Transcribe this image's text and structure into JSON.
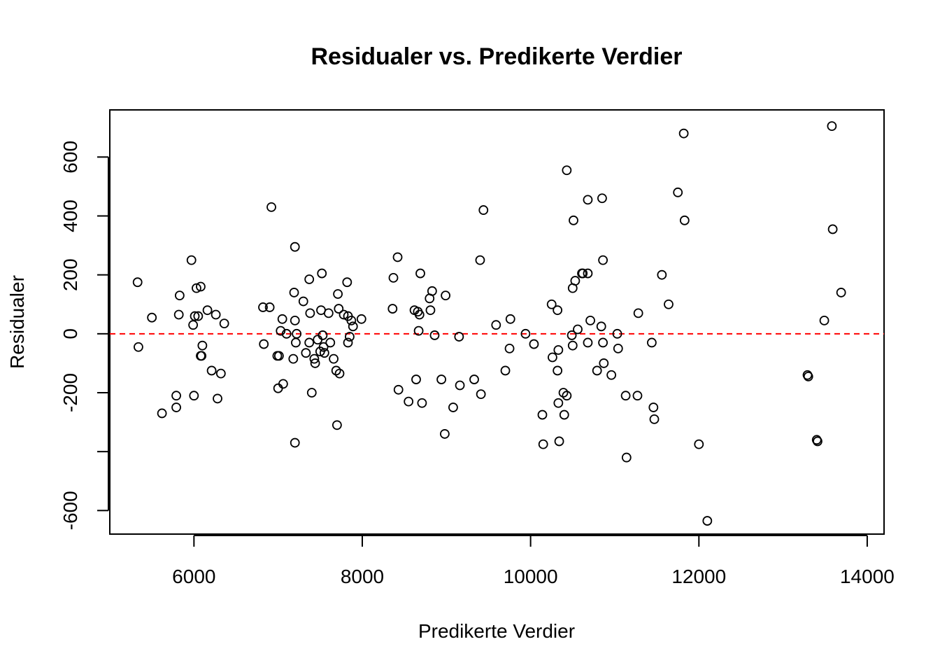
{
  "chart_data": {
    "type": "scatter",
    "title": "Residualer vs. Predikerte Verdier",
    "xlabel": "Predikerte Verdier",
    "ylabel": "Residualer",
    "xlim": [
      5000,
      14200
    ],
    "ylim": [
      -680,
      760
    ],
    "xticks": [
      6000,
      8000,
      10000,
      12000,
      14000
    ],
    "yticks": [
      -600,
      -400,
      -200,
      0,
      200,
      400,
      600
    ],
    "ytick_labels": [
      "-600",
      "",
      "-200",
      "0",
      "200",
      "400",
      "600"
    ],
    "reference_line": {
      "y": 0,
      "color": "#ff0000",
      "style": "dashed"
    },
    "point_color": "#000000",
    "grid": false,
    "points": [
      [
        5330,
        175
      ],
      [
        5340,
        -45
      ],
      [
        5500,
        55
      ],
      [
        5620,
        -270
      ],
      [
        5790,
        -210
      ],
      [
        5790,
        -250
      ],
      [
        5820,
        65
      ],
      [
        5830,
        130
      ],
      [
        5970,
        250
      ],
      [
        5990,
        30
      ],
      [
        6000,
        -210
      ],
      [
        6010,
        60
      ],
      [
        6030,
        155
      ],
      [
        6050,
        60
      ],
      [
        6080,
        160
      ],
      [
        6080,
        -75
      ],
      [
        6090,
        -75
      ],
      [
        6100,
        -40
      ],
      [
        6160,
        80
      ],
      [
        6210,
        -125
      ],
      [
        6260,
        65
      ],
      [
        6280,
        -220
      ],
      [
        6320,
        -135
      ],
      [
        6360,
        35
      ],
      [
        6820,
        90
      ],
      [
        6830,
        -35
      ],
      [
        6900,
        90
      ],
      [
        6920,
        430
      ],
      [
        6990,
        -75
      ],
      [
        7000,
        -185
      ],
      [
        7010,
        -75
      ],
      [
        7030,
        10
      ],
      [
        7050,
        50
      ],
      [
        7060,
        -170
      ],
      [
        7100,
        0
      ],
      [
        7180,
        -85
      ],
      [
        7190,
        140
      ],
      [
        7200,
        45
      ],
      [
        7200,
        295
      ],
      [
        7200,
        -370
      ],
      [
        7210,
        -30
      ],
      [
        7220,
        0
      ],
      [
        7300,
        110
      ],
      [
        7330,
        -65
      ],
      [
        7370,
        185
      ],
      [
        7370,
        -30
      ],
      [
        7380,
        70
      ],
      [
        7400,
        -200
      ],
      [
        7430,
        -85
      ],
      [
        7440,
        -100
      ],
      [
        7470,
        -20
      ],
      [
        7500,
        -60
      ],
      [
        7510,
        80
      ],
      [
        7520,
        205
      ],
      [
        7530,
        -5
      ],
      [
        7540,
        -45
      ],
      [
        7550,
        -65
      ],
      [
        7600,
        70
      ],
      [
        7620,
        -30
      ],
      [
        7660,
        -85
      ],
      [
        7690,
        -125
      ],
      [
        7700,
        -310
      ],
      [
        7710,
        135
      ],
      [
        7720,
        85
      ],
      [
        7730,
        -135
      ],
      [
        7780,
        65
      ],
      [
        7820,
        175
      ],
      [
        7830,
        60
      ],
      [
        7830,
        -30
      ],
      [
        7850,
        -10
      ],
      [
        7870,
        45
      ],
      [
        7890,
        25
      ],
      [
        7990,
        50
      ],
      [
        8360,
        85
      ],
      [
        8370,
        190
      ],
      [
        8420,
        260
      ],
      [
        8430,
        -190
      ],
      [
        8550,
        -230
      ],
      [
        8620,
        80
      ],
      [
        8640,
        -155
      ],
      [
        8660,
        75
      ],
      [
        8670,
        10
      ],
      [
        8680,
        65
      ],
      [
        8690,
        205
      ],
      [
        8710,
        -235
      ],
      [
        8800,
        120
      ],
      [
        8810,
        80
      ],
      [
        8830,
        145
      ],
      [
        8860,
        -5
      ],
      [
        8940,
        -155
      ],
      [
        8980,
        -340
      ],
      [
        8990,
        130
      ],
      [
        9080,
        -250
      ],
      [
        9150,
        -10
      ],
      [
        9160,
        -175
      ],
      [
        9330,
        -155
      ],
      [
        9400,
        250
      ],
      [
        9410,
        -205
      ],
      [
        9440,
        420
      ],
      [
        9590,
        30
      ],
      [
        9700,
        -125
      ],
      [
        9750,
        -50
      ],
      [
        9760,
        50
      ],
      [
        9940,
        0
      ],
      [
        10040,
        -35
      ],
      [
        10140,
        -275
      ],
      [
        10150,
        -375
      ],
      [
        10250,
        100
      ],
      [
        10260,
        -80
      ],
      [
        10320,
        80
      ],
      [
        10320,
        -125
      ],
      [
        10330,
        -235
      ],
      [
        10330,
        -55
      ],
      [
        10340,
        -365
      ],
      [
        10390,
        -200
      ],
      [
        10400,
        -275
      ],
      [
        10430,
        -210
      ],
      [
        10430,
        555
      ],
      [
        10490,
        -5
      ],
      [
        10500,
        -40
      ],
      [
        10500,
        155
      ],
      [
        10510,
        385
      ],
      [
        10530,
        180
      ],
      [
        10560,
        15
      ],
      [
        10610,
        205
      ],
      [
        10620,
        205
      ],
      [
        10680,
        205
      ],
      [
        10680,
        455
      ],
      [
        10680,
        -30
      ],
      [
        10710,
        45
      ],
      [
        10790,
        -125
      ],
      [
        10840,
        25
      ],
      [
        10850,
        460
      ],
      [
        10860,
        250
      ],
      [
        10860,
        -30
      ],
      [
        10870,
        -100
      ],
      [
        10960,
        -140
      ],
      [
        11030,
        0
      ],
      [
        11040,
        -50
      ],
      [
        11130,
        -210
      ],
      [
        11140,
        -420
      ],
      [
        11270,
        -210
      ],
      [
        11280,
        70
      ],
      [
        11440,
        -30
      ],
      [
        11460,
        -250
      ],
      [
        11470,
        -290
      ],
      [
        11560,
        200
      ],
      [
        11640,
        100
      ],
      [
        11750,
        480
      ],
      [
        11820,
        680
      ],
      [
        11830,
        385
      ],
      [
        12000,
        -375
      ],
      [
        12100,
        -635
      ],
      [
        13290,
        -140
      ],
      [
        13300,
        -145
      ],
      [
        13400,
        -360
      ],
      [
        13410,
        -365
      ],
      [
        13490,
        45
      ],
      [
        13580,
        705
      ],
      [
        13590,
        355
      ],
      [
        13690,
        140
      ]
    ]
  }
}
